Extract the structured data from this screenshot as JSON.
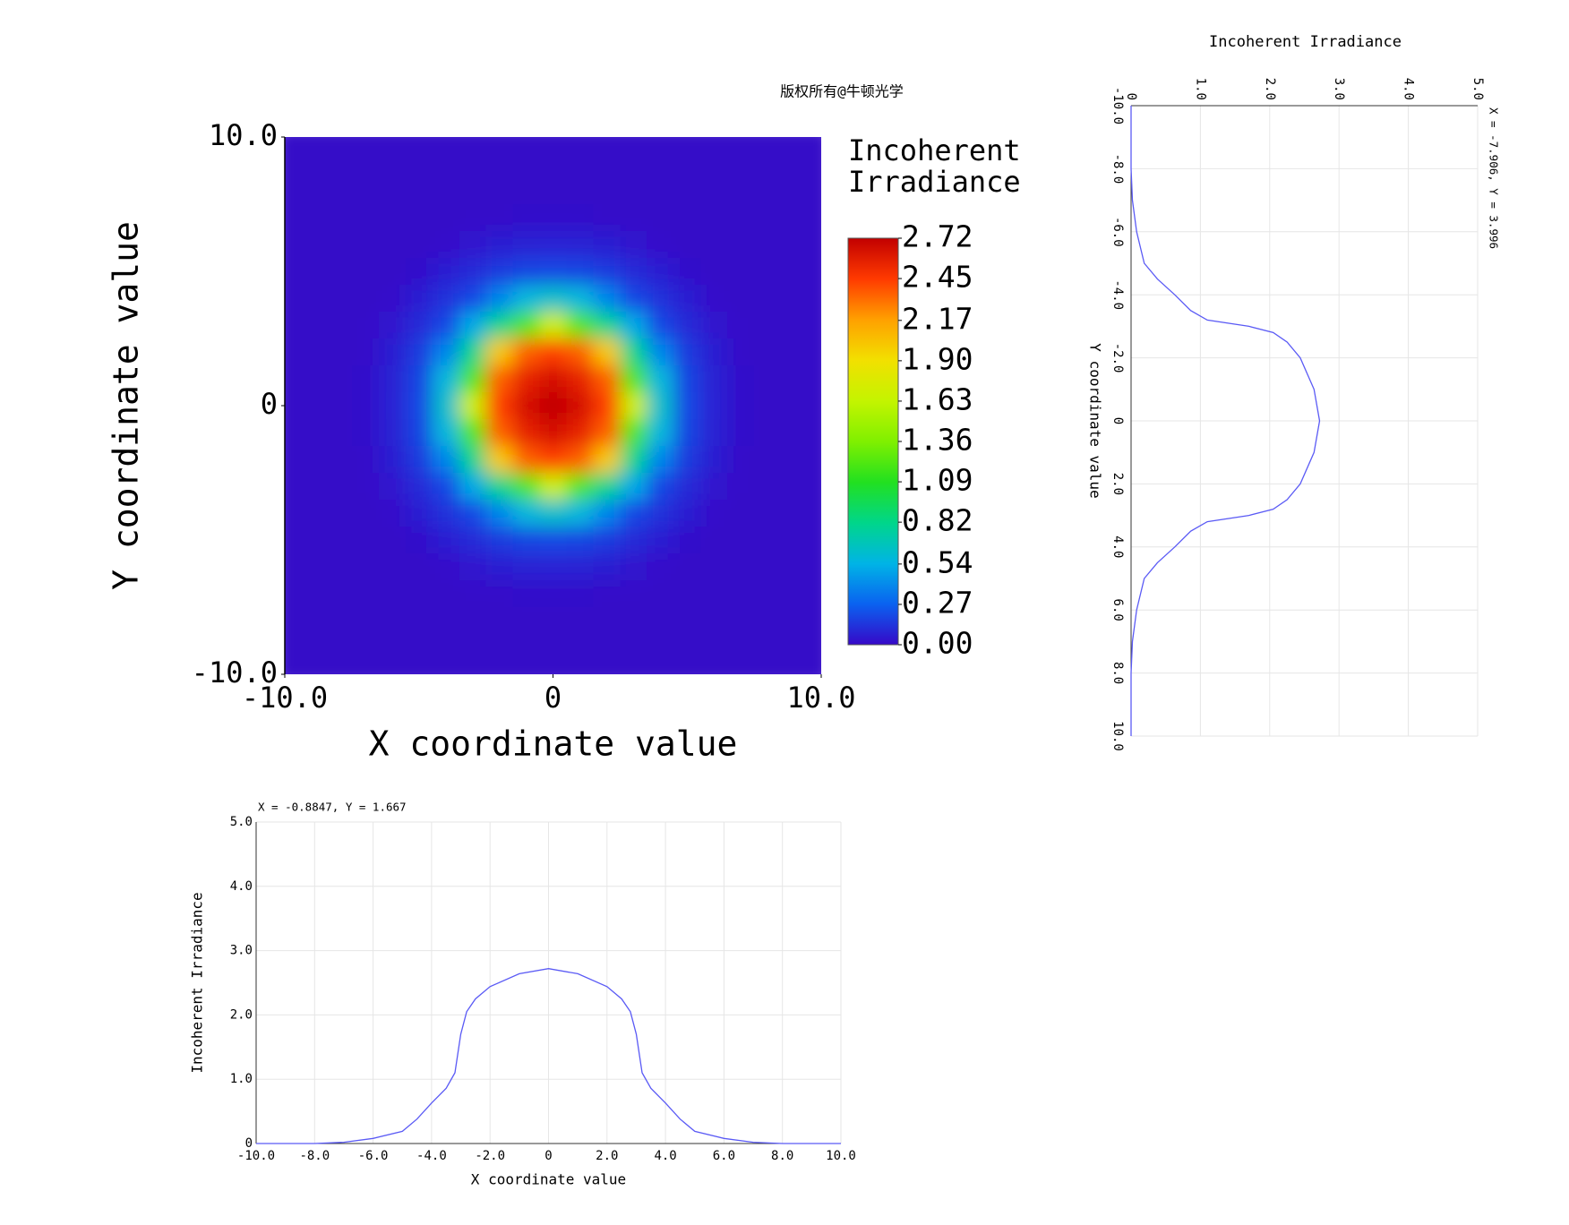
{
  "chart_data": [
    {
      "type": "heatmap",
      "annotation": "版权所有@牛顿光学",
      "xlabel": "X coordinate value",
      "ylabel": "Y coordinate value",
      "xlim": [
        -10,
        10
      ],
      "ylim": [
        -10,
        10
      ],
      "xticks": [
        {
          "value": -10,
          "label": "-10.0"
        },
        0,
        {
          "value": 10,
          "label": "10.0"
        }
      ],
      "yticks": [
        {
          "value": -10,
          "label": "-10.0"
        },
        0,
        {
          "value": 10,
          "label": "10.0"
        }
      ],
      "x": [
        -10,
        -9,
        -8,
        -7,
        -6,
        -5,
        -4,
        -3,
        -2,
        -1,
        0,
        1,
        2,
        3,
        4,
        5,
        6,
        7,
        8,
        9,
        10
      ],
      "y": [
        10,
        9,
        8,
        7,
        6,
        5,
        4,
        3,
        2,
        1,
        0,
        -1,
        -2,
        -3,
        -4,
        -5,
        -6,
        -7,
        -8,
        -9,
        -10
      ],
      "z": [
        [
          0,
          0,
          0,
          0,
          0,
          0,
          0,
          0,
          0,
          0,
          0,
          0,
          0,
          0,
          0,
          0,
          0,
          0,
          0,
          0,
          0
        ],
        [
          0,
          0,
          0,
          0,
          0,
          0,
          0,
          0,
          0,
          0,
          0,
          0,
          0,
          0,
          0,
          0,
          0,
          0,
          0,
          0,
          0
        ],
        [
          0,
          0,
          0,
          0,
          0,
          0,
          0,
          0,
          0,
          0,
          0,
          0,
          0,
          0,
          0,
          0,
          0,
          0,
          0,
          0,
          0
        ],
        [
          0,
          0,
          0,
          0,
          0,
          0,
          0,
          0.01,
          0.01,
          0.02,
          0.02,
          0.02,
          0.01,
          0.01,
          0,
          0,
          0,
          0,
          0,
          0,
          0
        ],
        [
          0,
          0,
          0,
          0,
          0,
          0,
          0.015,
          0.04,
          0.06,
          0.075,
          0.08,
          0.075,
          0.06,
          0.04,
          0.015,
          0,
          0,
          0,
          0,
          0,
          0
        ],
        [
          0,
          0,
          0,
          0,
          0,
          0.02,
          0.06,
          0.1,
          0.15,
          0.18,
          0.19,
          0.18,
          0.15,
          0.1,
          0.06,
          0.02,
          0,
          0,
          0,
          0,
          0
        ],
        [
          0,
          0,
          0,
          0,
          0.015,
          0.06,
          0.12,
          0.19,
          0.39,
          0.57,
          0.63,
          0.57,
          0.39,
          0.19,
          0.12,
          0.06,
          0.015,
          0,
          0,
          0,
          0
        ],
        [
          0,
          0,
          0,
          0.01,
          0.04,
          0.1,
          0.19,
          0.51,
          0.81,
          1.21,
          1.7,
          1.21,
          0.81,
          0.51,
          0.19,
          0.1,
          0.04,
          0.01,
          0,
          0,
          0
        ],
        [
          0,
          0,
          0,
          0.01,
          0.06,
          0.15,
          0.39,
          0.81,
          2.0,
          2.35,
          2.44,
          2.35,
          2.0,
          0.81,
          0.39,
          0.15,
          0.06,
          0.01,
          0,
          0,
          0
        ],
        [
          0,
          0,
          0,
          0.02,
          0.075,
          0.18,
          0.57,
          1.21,
          2.35,
          2.56,
          2.64,
          2.56,
          2.35,
          1.21,
          0.57,
          0.18,
          0.075,
          0.02,
          0,
          0,
          0
        ],
        [
          0,
          0,
          0,
          0.02,
          0.08,
          0.19,
          0.63,
          1.7,
          2.44,
          2.64,
          2.72,
          2.64,
          2.44,
          1.7,
          0.63,
          0.19,
          0.08,
          0.02,
          0,
          0,
          0
        ],
        [
          0,
          0,
          0,
          0.02,
          0.075,
          0.18,
          0.57,
          1.21,
          2.35,
          2.56,
          2.64,
          2.56,
          2.35,
          1.21,
          0.57,
          0.18,
          0.075,
          0.02,
          0,
          0,
          0
        ],
        [
          0,
          0,
          0,
          0.01,
          0.06,
          0.15,
          0.39,
          0.81,
          2.0,
          2.35,
          2.44,
          2.35,
          2.0,
          0.81,
          0.39,
          0.15,
          0.06,
          0.01,
          0,
          0,
          0
        ],
        [
          0,
          0,
          0,
          0.01,
          0.04,
          0.1,
          0.19,
          0.51,
          0.81,
          1.21,
          1.7,
          1.21,
          0.81,
          0.51,
          0.19,
          0.1,
          0.04,
          0.01,
          0,
          0,
          0
        ],
        [
          0,
          0,
          0,
          0,
          0.015,
          0.06,
          0.12,
          0.19,
          0.39,
          0.57,
          0.63,
          0.57,
          0.39,
          0.19,
          0.12,
          0.06,
          0.015,
          0,
          0,
          0,
          0
        ],
        [
          0,
          0,
          0,
          0,
          0,
          0.02,
          0.06,
          0.1,
          0.15,
          0.18,
          0.19,
          0.18,
          0.15,
          0.1,
          0.06,
          0.02,
          0,
          0,
          0,
          0,
          0
        ],
        [
          0,
          0,
          0,
          0,
          0,
          0,
          0.015,
          0.04,
          0.06,
          0.075,
          0.08,
          0.075,
          0.06,
          0.04,
          0.015,
          0,
          0,
          0,
          0,
          0,
          0
        ],
        [
          0,
          0,
          0,
          0,
          0,
          0,
          0,
          0.01,
          0.01,
          0.02,
          0.02,
          0.02,
          0.01,
          0.01,
          0,
          0,
          0,
          0,
          0,
          0,
          0
        ],
        [
          0,
          0,
          0,
          0,
          0,
          0,
          0,
          0,
          0,
          0,
          0,
          0,
          0,
          0,
          0,
          0,
          0,
          0,
          0,
          0,
          0
        ],
        [
          0,
          0,
          0,
          0,
          0,
          0,
          0,
          0,
          0,
          0,
          0,
          0,
          0,
          0,
          0,
          0,
          0,
          0,
          0,
          0,
          0
        ],
        [
          0,
          0,
          0,
          0,
          0,
          0,
          0,
          0,
          0,
          0,
          0,
          0,
          0,
          0,
          0,
          0,
          0,
          0,
          0,
          0,
          0
        ]
      ],
      "colorbar": {
        "title": [
          "Incoherent",
          "Irradiance"
        ],
        "zlim": [
          0,
          2.72
        ],
        "ticks": [
          {
            "value": 0,
            "label": "0.00"
          },
          {
            "value": 0.27,
            "label": "0.27"
          },
          {
            "value": 0.54,
            "label": "0.54"
          },
          {
            "value": 0.82,
            "label": "0.82"
          },
          {
            "value": 1.09,
            "label": "1.09"
          },
          {
            "value": 1.36,
            "label": "1.36"
          },
          {
            "value": 1.63,
            "label": "1.63"
          },
          {
            "value": 1.9,
            "label": "1.90"
          },
          {
            "value": 2.17,
            "label": "2.17"
          },
          {
            "value": 2.45,
            "label": "2.45"
          },
          {
            "value": 2.72,
            "label": "2.72"
          }
        ],
        "colormap": [
          "#3608c8",
          "#0a62f0",
          "#00b4e6",
          "#00d68a",
          "#22e020",
          "#80f000",
          "#c4f400",
          "#f2e000",
          "#ffa000",
          "#ff3a00",
          "#c20000"
        ]
      }
    },
    {
      "type": "line",
      "title": "X = -0.8847, Y = 1.667",
      "xlabel": "X coordinate value",
      "ylabel": "Incoherent Irradiance",
      "xlim": [
        -10,
        10
      ],
      "ylim": [
        0,
        5
      ],
      "xticks": [
        {
          "value": -10,
          "label": "-10.0"
        },
        {
          "value": -8,
          "label": "-8.0"
        },
        {
          "value": -6,
          "label": "-6.0"
        },
        {
          "value": -4,
          "label": "-4.0"
        },
        {
          "value": -2,
          "label": "-2.0"
        },
        0,
        {
          "value": 2,
          "label": "2.0"
        },
        {
          "value": 4,
          "label": "4.0"
        },
        {
          "value": 6,
          "label": "6.0"
        },
        {
          "value": 8,
          "label": "8.0"
        },
        {
          "value": 10,
          "label": "10.0"
        }
      ],
      "yticks": [
        0,
        {
          "value": 1,
          "label": "1.0"
        },
        {
          "value": 2,
          "label": "2.0"
        },
        {
          "value": 3,
          "label": "3.0"
        },
        {
          "value": 4,
          "label": "4.0"
        },
        {
          "value": 5,
          "label": "5.0"
        }
      ],
      "grid": true,
      "color": "#5a5af5",
      "x": [
        -10,
        -9,
        -8,
        -7,
        -6,
        -5,
        -4.5,
        -4,
        -3.5,
        -3.2,
        -3,
        -2.8,
        -2.5,
        -2,
        -1,
        0,
        1,
        2,
        2.5,
        2.8,
        3,
        3.2,
        3.5,
        4,
        4.5,
        5,
        6,
        7,
        8,
        9,
        10
      ],
      "values": [
        0,
        0,
        0,
        0.02,
        0.08,
        0.19,
        0.38,
        0.63,
        0.86,
        1.1,
        1.7,
        2.05,
        2.25,
        2.44,
        2.64,
        2.72,
        2.64,
        2.44,
        2.25,
        2.05,
        1.7,
        1.1,
        0.86,
        0.63,
        0.38,
        0.19,
        0.08,
        0.02,
        0,
        0,
        0
      ]
    },
    {
      "type": "line",
      "orientation": "vertical",
      "title": "X = -7.906, Y = 3.996",
      "xlabel": "Y coordinate value",
      "ylabel": "Incoherent Irradiance",
      "xlim": [
        -10,
        10
      ],
      "ylim": [
        0,
        5
      ],
      "xticks": [
        {
          "value": -10,
          "label": "-10.0"
        },
        {
          "value": -8,
          "label": "-8.0"
        },
        {
          "value": -6,
          "label": "-6.0"
        },
        {
          "value": -4,
          "label": "-4.0"
        },
        {
          "value": -2,
          "label": "-2.0"
        },
        0,
        {
          "value": 2,
          "label": "2.0"
        },
        {
          "value": 4,
          "label": "4.0"
        },
        {
          "value": 6,
          "label": "6.0"
        },
        {
          "value": 8,
          "label": "8.0"
        },
        {
          "value": 10,
          "label": "10.0"
        }
      ],
      "yticks": [
        0,
        {
          "value": 1,
          "label": "1.0"
        },
        {
          "value": 2,
          "label": "2.0"
        },
        {
          "value": 3,
          "label": "3.0"
        },
        {
          "value": 4,
          "label": "4.0"
        },
        {
          "value": 5,
          "label": "5.0"
        }
      ],
      "grid": true,
      "color": "#5a5af5",
      "x": [
        -10,
        -9,
        -8,
        -7,
        -6,
        -5,
        -4.5,
        -4,
        -3.5,
        -3.2,
        -3,
        -2.8,
        -2.5,
        -2,
        -1,
        0,
        1,
        2,
        2.5,
        2.8,
        3,
        3.2,
        3.5,
        4,
        4.5,
        5,
        6,
        7,
        8,
        9,
        10
      ],
      "values": [
        0,
        0,
        0,
        0.02,
        0.08,
        0.19,
        0.38,
        0.63,
        0.86,
        1.1,
        1.7,
        2.05,
        2.25,
        2.44,
        2.64,
        2.72,
        2.64,
        2.44,
        2.25,
        2.05,
        1.7,
        1.1,
        0.86,
        0.63,
        0.38,
        0.19,
        0.08,
        0.02,
        0,
        0,
        0
      ]
    }
  ]
}
